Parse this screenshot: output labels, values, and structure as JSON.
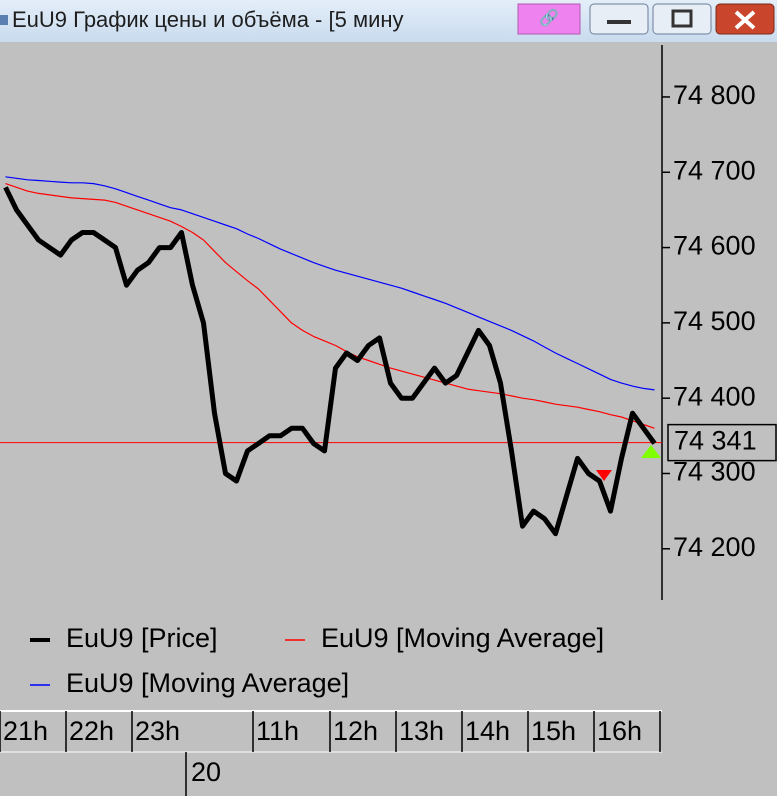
{
  "window": {
    "title": "EuU9 График цены и объёма - [5 мину"
  },
  "chart_data": {
    "type": "line",
    "categories": [
      "21h",
      null,
      null,
      null,
      null,
      null,
      "22h",
      null,
      null,
      null,
      null,
      null,
      "23h",
      null,
      null,
      null,
      null,
      null,
      null,
      null,
      null,
      null,
      null,
      "11h",
      null,
      null,
      null,
      null,
      null,
      null,
      "12h",
      null,
      null,
      null,
      null,
      null,
      "13h",
      null,
      null,
      null,
      null,
      null,
      "14h",
      null,
      null,
      null,
      null,
      null,
      "15h",
      null,
      null,
      null,
      null,
      null,
      "16h",
      null,
      null,
      null,
      null,
      null
    ],
    "series": [
      {
        "name": "EuU9 [Price]",
        "color": "#000000",
        "values": [
          74680,
          74650,
          74630,
          74610,
          74600,
          74590,
          74610,
          74620,
          74620,
          74610,
          74600,
          74550,
          74570,
          74580,
          74600,
          74600,
          74620,
          74550,
          74500,
          74380,
          74300,
          74290,
          74330,
          74340,
          74350,
          74350,
          74360,
          74360,
          74340,
          74330,
          74440,
          74460,
          74450,
          74470,
          74480,
          74420,
          74400,
          74400,
          74420,
          74440,
          74420,
          74430,
          74460,
          74490,
          74470,
          74420,
          74330,
          74230,
          74250,
          74240,
          74220,
          74270,
          74320,
          74300,
          74290,
          74250,
          74320,
          74380,
          74360,
          74340
        ]
      },
      {
        "name": "EuU9 [Moving Average]",
        "color": "#ff0000",
        "values": [
          74685,
          74680,
          74675,
          74672,
          74670,
          74668,
          74666,
          74665,
          74664,
          74663,
          74660,
          74655,
          74650,
          74645,
          74640,
          74635,
          74628,
          74620,
          74610,
          74595,
          74580,
          74568,
          74556,
          74545,
          74530,
          74515,
          74500,
          74490,
          74482,
          74476,
          74470,
          74462,
          74455,
          74450,
          74445,
          74440,
          74436,
          74432,
          74428,
          74424,
          74420,
          74416,
          74412,
          74410,
          74408,
          74406,
          74403,
          74400,
          74398,
          74395,
          74392,
          74390,
          74388,
          74385,
          74382,
          74378,
          74375,
          74370,
          74365,
          74360
        ]
      },
      {
        "name": "EuU9 [Moving Average]",
        "color": "#0000ff",
        "values": [
          74694,
          74692,
          74690,
          74689,
          74688,
          74687,
          74686,
          74686,
          74685,
          74682,
          74678,
          74673,
          74668,
          74663,
          74658,
          74653,
          74650,
          74645,
          74640,
          74635,
          74630,
          74625,
          74618,
          74612,
          74605,
          74598,
          74592,
          74586,
          74580,
          74575,
          74570,
          74566,
          74562,
          74558,
          74554,
          74550,
          74546,
          74541,
          74536,
          74531,
          74526,
          74520,
          74514,
          74508,
          74502,
          74496,
          74490,
          74483,
          74476,
          74468,
          74460,
          74453,
          74446,
          74439,
          74432,
          74425,
          74420,
          74416,
          74413,
          74411
        ]
      }
    ],
    "ylim": [
      74132,
      74869
    ],
    "yticks": [
      {
        "value": 74200,
        "label": "74 200"
      },
      {
        "value": 74300,
        "label": "74 300"
      },
      {
        "value": 74400,
        "label": "74 400"
      },
      {
        "value": 74500,
        "label": "74 500"
      },
      {
        "value": 74600,
        "label": "74 600"
      },
      {
        "value": 74700,
        "label": "74 700"
      },
      {
        "value": 74800,
        "label": "74 800"
      }
    ],
    "last_value": {
      "value": 74341,
      "label": "74 341"
    },
    "date_label": "20",
    "grid": false
  }
}
